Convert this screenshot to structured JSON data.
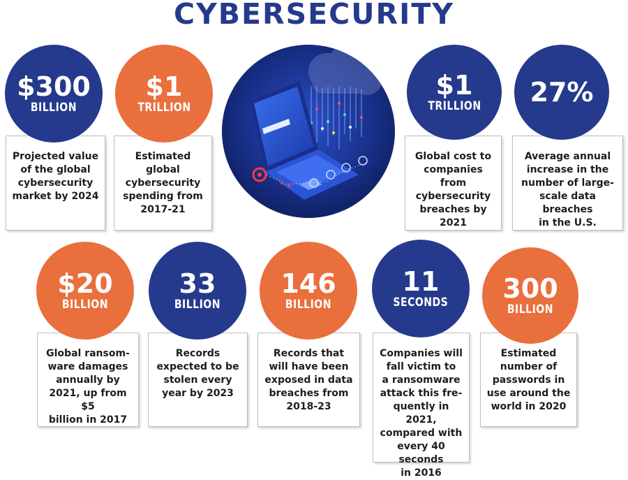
{
  "title": "CYBERSECURITY",
  "colors": {
    "navy": "#253a8c",
    "orange": "#e96f3d"
  },
  "stats": [
    {
      "value": "$300",
      "unit": "BILLION",
      "color": "navy",
      "desc": [
        "Projected value",
        "of the global",
        "cybersecurity",
        "market by 2024"
      ]
    },
    {
      "value": "$1",
      "unit": "TRILLION",
      "color": "orange",
      "desc": [
        "Estimated global",
        "cybersecurity",
        "spending from",
        "2017-21"
      ]
    },
    {
      "value": "$1",
      "unit": "TRILLION",
      "color": "navy",
      "desc": [
        "Global cost to",
        "companies from",
        "cybersecurity",
        "breaches by",
        "2021"
      ]
    },
    {
      "value": "27%",
      "unit": "",
      "color": "navy",
      "desc": [
        "Average annual",
        "increase in the",
        "number of large-",
        "scale data breaches",
        "in the U.S."
      ]
    },
    {
      "value": "$20",
      "unit": "BILLION",
      "color": "orange",
      "desc": [
        "Global ransom-",
        "ware damages",
        "annually by",
        "2021, up from $5",
        "billion in 2017"
      ]
    },
    {
      "value": "33",
      "unit": "BILLION",
      "color": "navy",
      "desc": [
        "Records",
        "expected to be",
        "stolen every",
        "year by 2023"
      ]
    },
    {
      "value": "146",
      "unit": "BILLION",
      "color": "orange",
      "desc": [
        "Records that",
        "will have been",
        "exposed in data",
        "breaches from",
        "2018-23"
      ]
    },
    {
      "value": "11",
      "unit": "SECONDS",
      "color": "navy",
      "desc": [
        "Companies will",
        "fall victim to",
        "a ransomware",
        "attack this fre-",
        "quently in 2021,",
        "compared with",
        "every 40 seconds",
        "in 2016"
      ]
    },
    {
      "value": "300",
      "unit": "BILLION",
      "color": "orange",
      "desc": [
        "Estimated",
        "number of",
        "passwords in",
        "use around the",
        "world in 2020"
      ]
    }
  ],
  "hero_image": {
    "name": "laptop-cloud-illustration"
  }
}
